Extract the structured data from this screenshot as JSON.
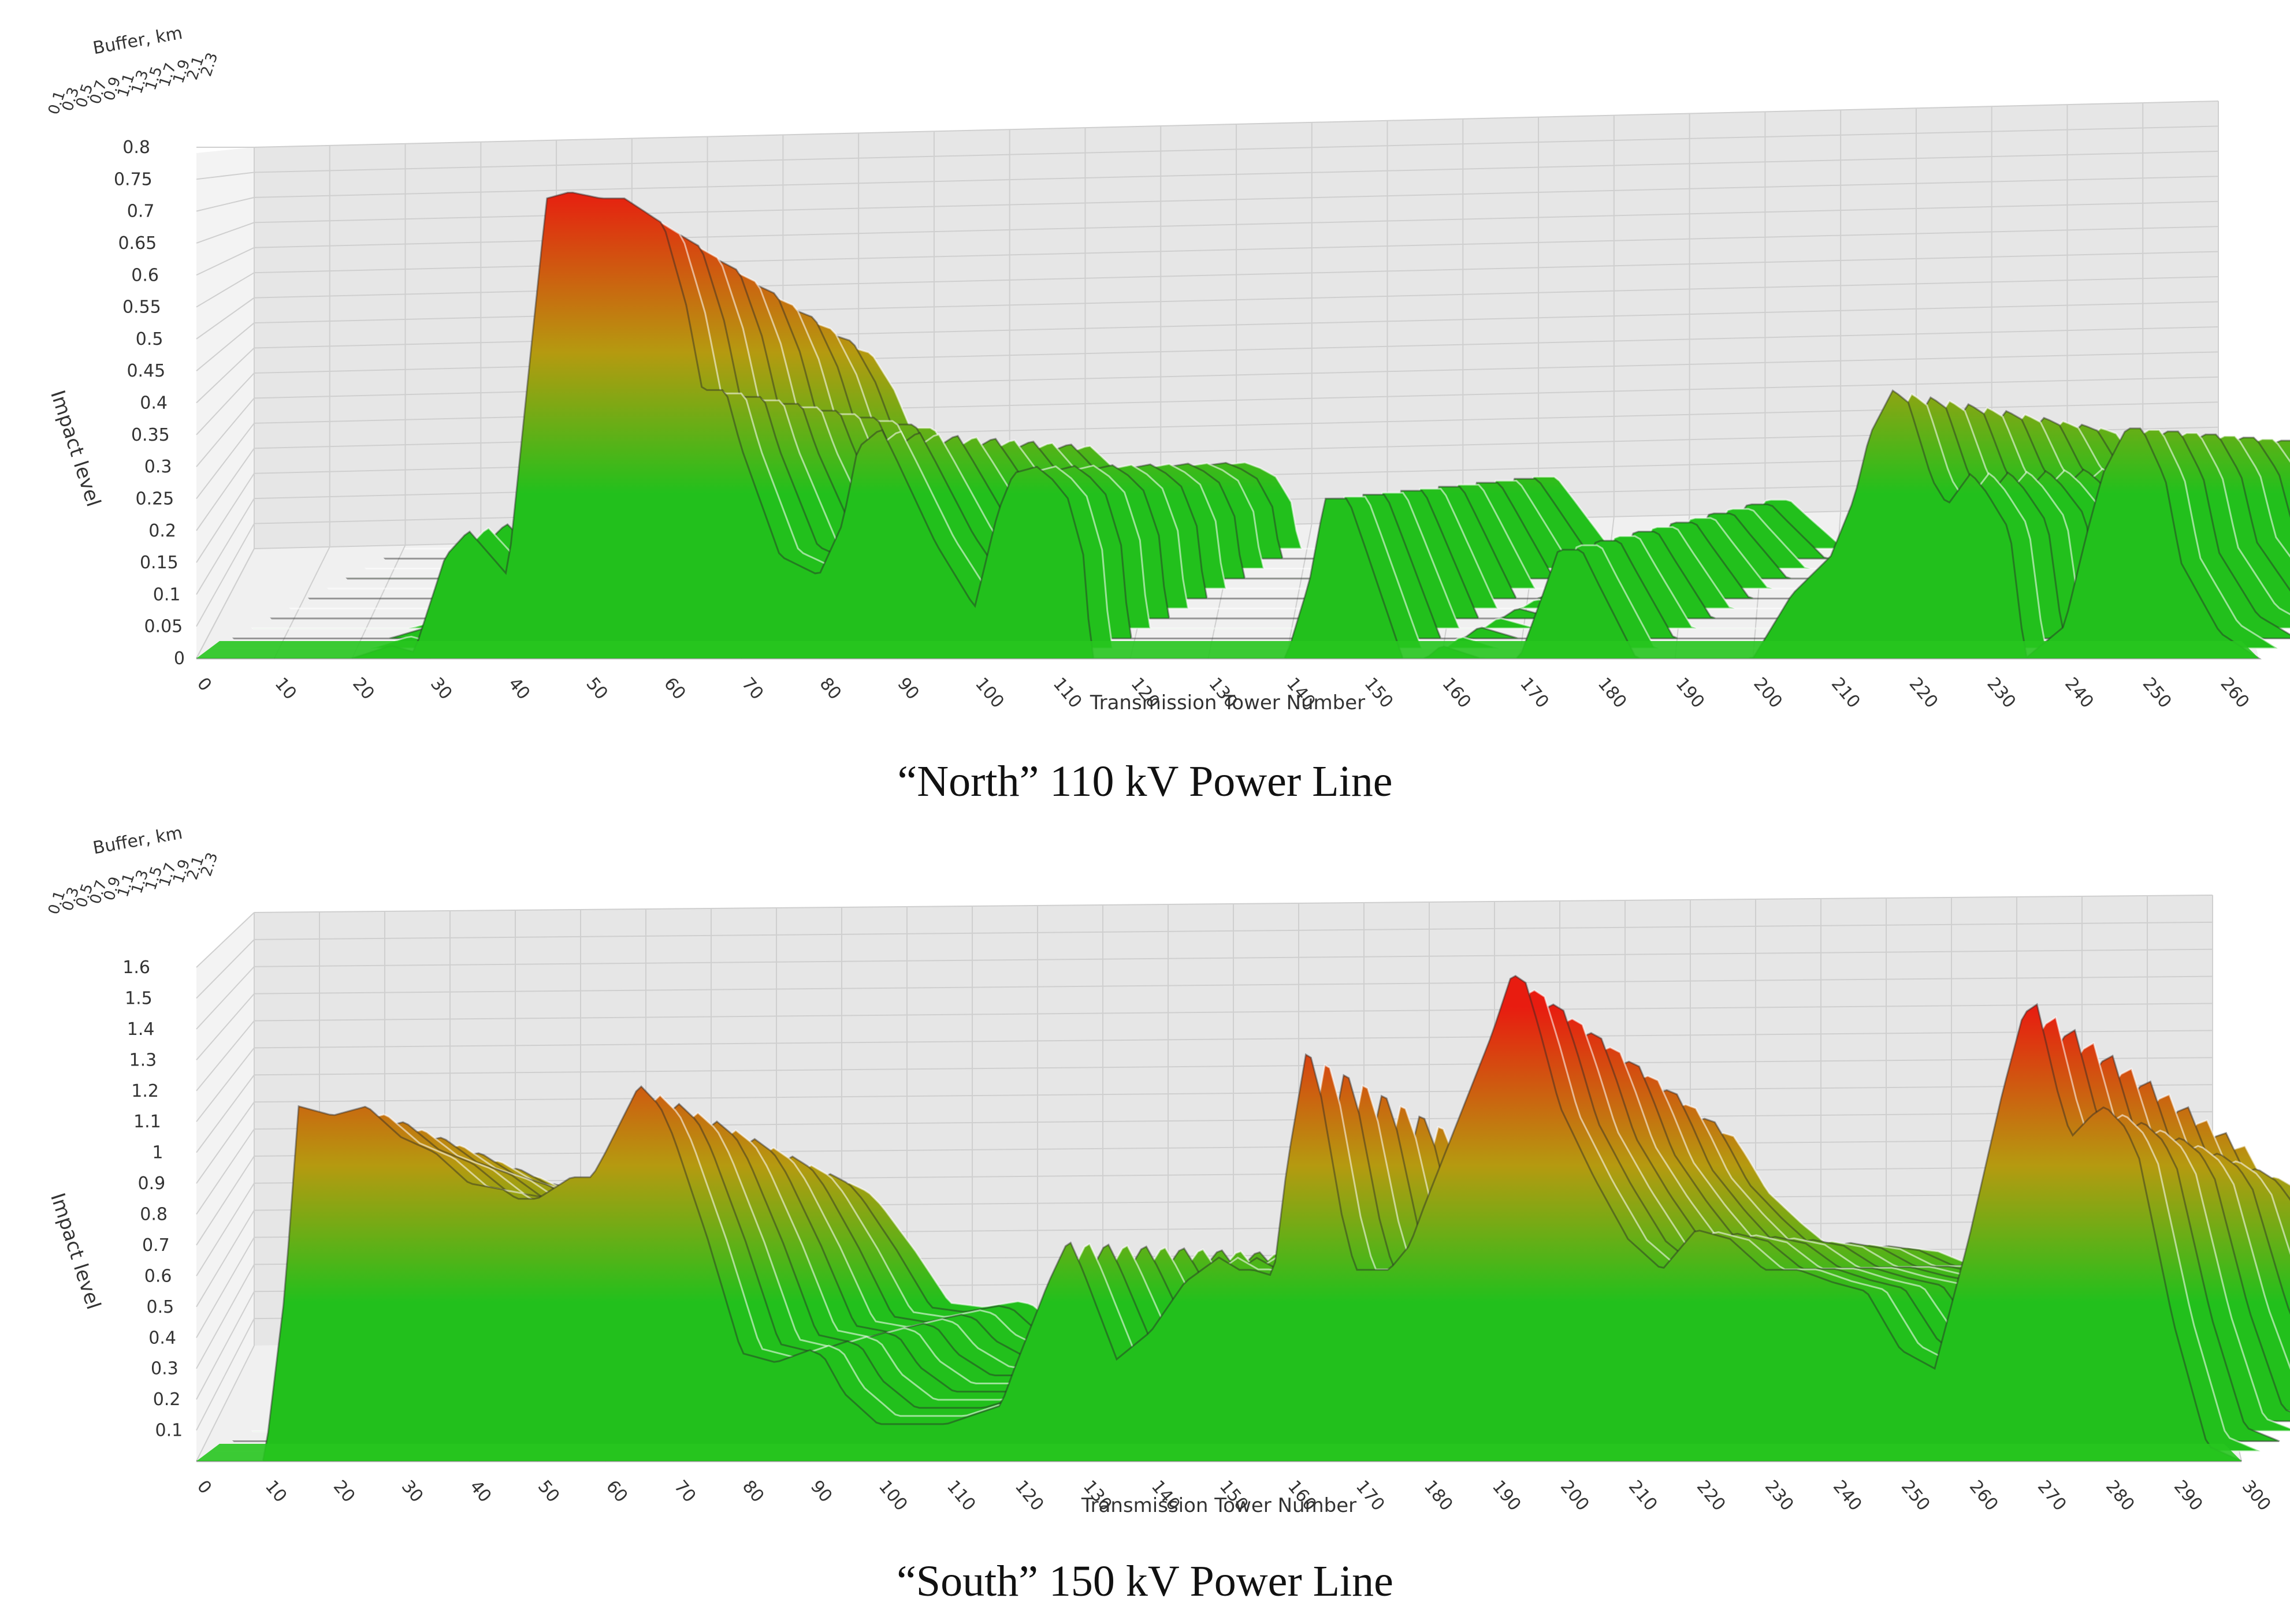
{
  "charts_meta": {
    "colors": {
      "low": "#22c01c",
      "mid": "#b59a10",
      "high": "#e81c10",
      "back_panel": "#e6e6e6",
      "grid": "#cfcfcf",
      "floor": "#27c51f"
    }
  },
  "chart_data": [
    {
      "type": "surface",
      "caption": "“North” 110 kV Power Line",
      "xlabel": "Transmission Tower Number",
      "ylabel": "Impact level",
      "zlabel": "Buffer, km",
      "xlim": [
        0,
        265
      ],
      "ylim": [
        0,
        0.8
      ],
      "x_ticks": [
        "0",
        "10",
        "20",
        "30",
        "40",
        "50",
        "60",
        "70",
        "80",
        "90",
        "100",
        "110",
        "120",
        "130",
        "140",
        "150",
        "160",
        "170",
        "180",
        "190",
        "200",
        "210",
        "220",
        "230",
        "240",
        "250",
        "260"
      ],
      "y_ticks": [
        "0",
        "0.05",
        "0.1",
        "0.15",
        "0.2",
        "0.25",
        "0.3",
        "0.35",
        "0.4",
        "0.45",
        "0.5",
        "0.55",
        "0.6",
        "0.65",
        "0.7",
        "0.75",
        "0.8"
      ],
      "buffer_ticks": [
        "0.1",
        "0.3",
        "0.5",
        "0.7",
        "0.9",
        "1.1",
        "1.3",
        "1.5",
        "1.7",
        "1.9",
        "2.1",
        "2.3"
      ],
      "ridge_profile": {
        "x": [
          0,
          20,
          25,
          28,
          32,
          35,
          40,
          45,
          48,
          52,
          55,
          60,
          63,
          65,
          68,
          70,
          75,
          80,
          83,
          85,
          88,
          90,
          95,
          100,
          103,
          105,
          108,
          110,
          112,
          114,
          115,
          118,
          120,
          125,
          130,
          135,
          140,
          143,
          145,
          148,
          150,
          155,
          158,
          160,
          165,
          170,
          173,
          175,
          178,
          180,
          185,
          190,
          200,
          205,
          210,
          213,
          215,
          218,
          220,
          223,
          225,
          228,
          230,
          233,
          235,
          240,
          243,
          245,
          248,
          250,
          253,
          255,
          260,
          265
        ],
        "y": [
          0,
          0,
          0.02,
          0.01,
          0.16,
          0.2,
          0.13,
          0.72,
          0.73,
          0.72,
          0.72,
          0.68,
          0.55,
          0.42,
          0.42,
          0.33,
          0.16,
          0.13,
          0.21,
          0.33,
          0.36,
          0.31,
          0.18,
          0.08,
          0.23,
          0.29,
          0.3,
          0.28,
          0.25,
          0.16,
          0.0,
          0.0,
          0.0,
          0.0,
          0.0,
          0.0,
          0.0,
          0.12,
          0.25,
          0.25,
          0.18,
          0.0,
          0.0,
          0.02,
          0.0,
          0.0,
          0.1,
          0.17,
          0.17,
          0.12,
          0.0,
          0.0,
          0.0,
          0.1,
          0.16,
          0.25,
          0.35,
          0.42,
          0.4,
          0.28,
          0.24,
          0.29,
          0.26,
          0.2,
          0.0,
          0.05,
          0.2,
          0.29,
          0.36,
          0.36,
          0.28,
          0.15,
          0.04,
          0.0
        ]
      }
    },
    {
      "type": "surface",
      "caption": "“South” 150 kV Power Line",
      "xlabel": "Transmission Tower Number",
      "ylabel": "Impact level",
      "zlabel": "Buffer, km",
      "xlim": [
        0,
        300
      ],
      "ylim": [
        0,
        1.6
      ],
      "x_ticks": [
        "0",
        "10",
        "20",
        "30",
        "40",
        "50",
        "60",
        "70",
        "80",
        "90",
        "100",
        "110",
        "120",
        "130",
        "140",
        "150",
        "160",
        "170",
        "180",
        "190",
        "200",
        "210",
        "220",
        "230",
        "240",
        "250",
        "260",
        "270",
        "280",
        "290",
        "300"
      ],
      "y_ticks": [
        "0.1",
        "0.2",
        "0.3",
        "0.4",
        "0.5",
        "0.6",
        "0.7",
        "0.8",
        "0.9",
        "1",
        "1.1",
        "1.2",
        "1.3",
        "1.4",
        "1.5",
        "1.6"
      ],
      "buffer_ticks": [
        "0.1",
        "0.3",
        "0.5",
        "0.7",
        "0.9",
        "1.1",
        "1.3",
        "1.5",
        "1.7",
        "1.9",
        "2.1",
        "2.3"
      ],
      "ridge_profile": {
        "x": [
          0,
          10,
          13,
          15,
          20,
          25,
          30,
          35,
          40,
          45,
          47,
          50,
          55,
          58,
          60,
          65,
          68,
          70,
          75,
          80,
          85,
          90,
          92,
          95,
          100,
          110,
          118,
          120,
          125,
          128,
          130,
          135,
          140,
          145,
          150,
          153,
          155,
          158,
          160,
          163,
          165,
          168,
          170,
          175,
          178,
          180,
          185,
          190,
          193,
          195,
          197,
          200,
          205,
          210,
          215,
          220,
          225,
          230,
          235,
          240,
          245,
          250,
          255,
          260,
          265,
          268,
          270,
          273,
          275,
          278,
          280,
          283,
          285,
          290,
          295,
          300
        ],
        "y": [
          0,
          0,
          0.55,
          1.15,
          1.12,
          1.15,
          1.05,
          1.0,
          0.9,
          0.88,
          0.85,
          0.85,
          0.92,
          0.92,
          1.0,
          1.22,
          1.15,
          1.05,
          0.72,
          0.35,
          0.32,
          0.36,
          0.34,
          0.22,
          0.12,
          0.12,
          0.18,
          0.3,
          0.58,
          0.72,
          0.62,
          0.33,
          0.42,
          0.58,
          0.66,
          0.62,
          0.62,
          0.6,
          0.96,
          1.35,
          1.18,
          0.8,
          0.62,
          0.62,
          0.7,
          0.82,
          1.1,
          1.38,
          1.58,
          1.55,
          1.4,
          1.15,
          0.92,
          0.72,
          0.62,
          0.75,
          0.72,
          0.62,
          0.62,
          0.58,
          0.55,
          0.36,
          0.3,
          0.72,
          1.2,
          1.45,
          1.48,
          1.2,
          1.05,
          1.12,
          1.15,
          1.08,
          0.98,
          0.45,
          0.05,
          0.0
        ]
      }
    }
  ]
}
